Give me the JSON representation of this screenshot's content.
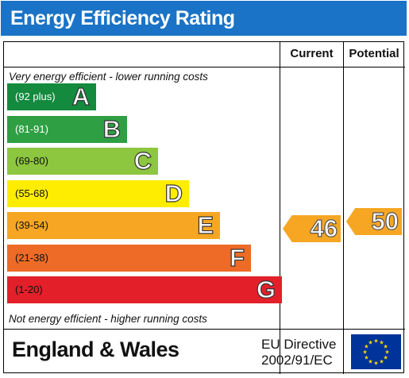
{
  "header": {
    "title": "Energy Efficiency Rating"
  },
  "columns": {
    "current": "Current",
    "potential": "Potential"
  },
  "notes": {
    "top": "Very energy efficient - lower running costs",
    "bottom": "Not energy efficient - higher running costs"
  },
  "bands": [
    {
      "range": "(92 plus)",
      "letter": "A",
      "color": "#138a3e"
    },
    {
      "range": "(81-91)",
      "letter": "B",
      "color": "#2ea043"
    },
    {
      "range": "(69-80)",
      "letter": "C",
      "color": "#8dc63f"
    },
    {
      "range": "(55-68)",
      "letter": "D",
      "color": "#ffed00"
    },
    {
      "range": "(39-54)",
      "letter": "E",
      "color": "#f6a623"
    },
    {
      "range": "(21-38)",
      "letter": "F",
      "color": "#ed6b26"
    },
    {
      "range": "(1-20)",
      "letter": "G",
      "color": "#e3202a"
    }
  ],
  "ratings": {
    "current": {
      "value": "46",
      "band": "E",
      "color": "#f6a623"
    },
    "potential": {
      "value": "50",
      "band": "E",
      "color": "#f6a623"
    }
  },
  "footer": {
    "region": "England & Wales",
    "directive_line1": "EU Directive",
    "directive_line2": "2002/91/EC"
  },
  "colors": {
    "title_bar": "#1a73c6",
    "eu_flag": "#003399",
    "eu_stars": "#ffdd00"
  }
}
